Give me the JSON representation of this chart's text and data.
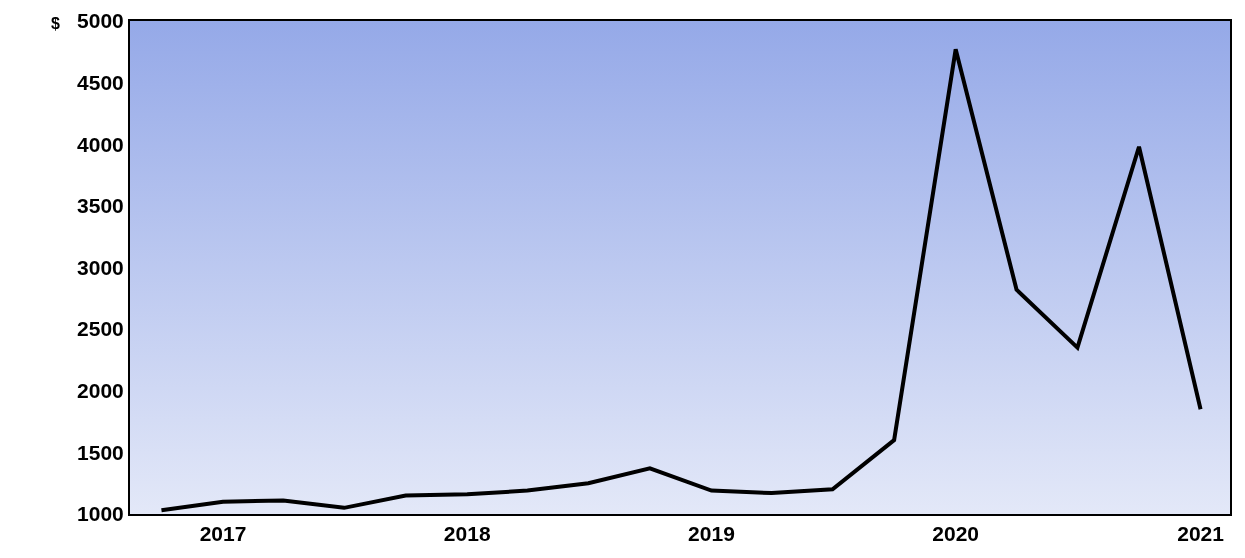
{
  "chart_data": {
    "type": "line",
    "ylabel": "$",
    "x": [
      "2016-10-01",
      "2017-01-01",
      "2017-04-01",
      "2017-07-01",
      "2017-10-01",
      "2018-01-01",
      "2018-04-01",
      "2018-07-01",
      "2018-10-01",
      "2019-01-01",
      "2019-04-01",
      "2019-07-01",
      "2019-10-01",
      "2020-01-01",
      "2020-04-01",
      "2020-07-01",
      "2020-10-01",
      "2021-01-01"
    ],
    "series": [
      {
        "color": "#000000",
        "values": [
          1030,
          1100,
          1110,
          1050,
          1150,
          1160,
          1190,
          1250,
          1370,
          1190,
          1170,
          1200,
          1600,
          4770,
          2820,
          2350,
          3980,
          1850
        ]
      }
    ],
    "xlim": [
      "2016-08-15",
      "2021-02-14"
    ],
    "xticks": [
      {
        "value": "2017-01-01",
        "label": "2017"
      },
      {
        "value": "2018-01-01",
        "label": "2018"
      },
      {
        "value": "2019-01-01",
        "label": "2019"
      },
      {
        "value": "2020-01-01",
        "label": "2020"
      },
      {
        "value": "2021-01-01",
        "label": "2021"
      }
    ],
    "ylim": [
      1000,
      5000
    ],
    "yticks": [
      1000,
      1500,
      2000,
      2500,
      3000,
      3500,
      4000,
      4500,
      5000
    ],
    "grid": false,
    "marker": "none",
    "line_style": "solid"
  }
}
